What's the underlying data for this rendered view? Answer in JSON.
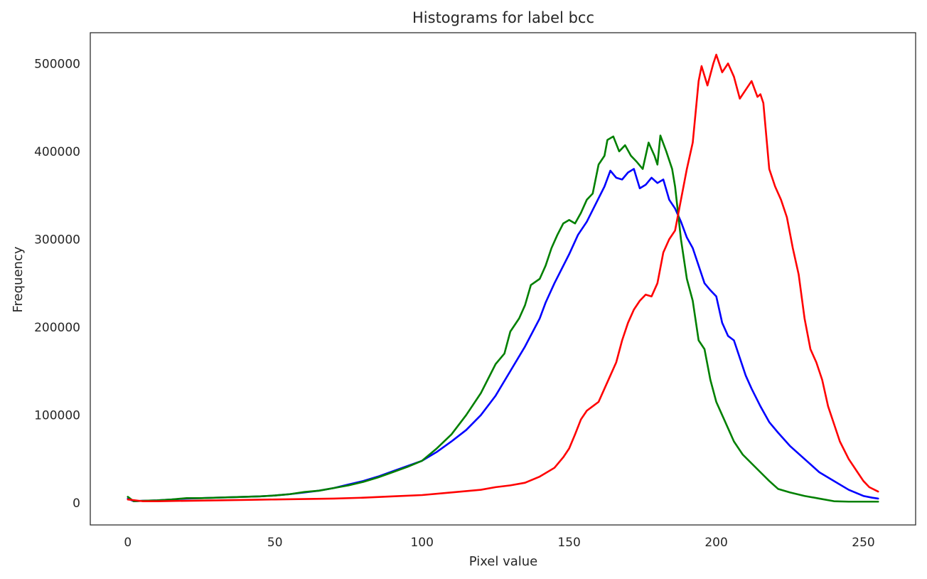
{
  "chart_data": {
    "type": "line",
    "title": "Histograms for label bcc",
    "xlabel": "Pixel value",
    "ylabel": "Frequency",
    "xlim": [
      -12.75,
      267.75
    ],
    "ylim": [
      -25000,
      535000
    ],
    "xticks": [
      0,
      50,
      100,
      150,
      200,
      250
    ],
    "yticks": [
      0,
      100000,
      200000,
      300000,
      400000,
      500000
    ],
    "grid": false,
    "legend": "none",
    "series": [
      {
        "color": "#0000ff",
        "points": [
          [
            0,
            5000
          ],
          [
            2,
            2000
          ],
          [
            5,
            2500
          ],
          [
            10,
            3000
          ],
          [
            15,
            4000
          ],
          [
            20,
            5000
          ],
          [
            25,
            5500
          ],
          [
            30,
            6000
          ],
          [
            35,
            6500
          ],
          [
            40,
            7000
          ],
          [
            45,
            7500
          ],
          [
            50,
            8500
          ],
          [
            55,
            10000
          ],
          [
            60,
            12000
          ],
          [
            65,
            14000
          ],
          [
            70,
            17000
          ],
          [
            75,
            21000
          ],
          [
            80,
            25000
          ],
          [
            85,
            30000
          ],
          [
            90,
            36000
          ],
          [
            95,
            42000
          ],
          [
            100,
            48000
          ],
          [
            105,
            58000
          ],
          [
            110,
            70000
          ],
          [
            115,
            83000
          ],
          [
            120,
            100000
          ],
          [
            125,
            122000
          ],
          [
            130,
            150000
          ],
          [
            135,
            178000
          ],
          [
            140,
            210000
          ],
          [
            142,
            228000
          ],
          [
            145,
            250000
          ],
          [
            150,
            283000
          ],
          [
            153,
            305000
          ],
          [
            156,
            320000
          ],
          [
            159,
            340000
          ],
          [
            162,
            360000
          ],
          [
            164,
            378000
          ],
          [
            166,
            370000
          ],
          [
            168,
            368000
          ],
          [
            170,
            376000
          ],
          [
            172,
            380000
          ],
          [
            174,
            358000
          ],
          [
            176,
            362000
          ],
          [
            178,
            370000
          ],
          [
            180,
            364000
          ],
          [
            182,
            368000
          ],
          [
            184,
            345000
          ],
          [
            186,
            335000
          ],
          [
            188,
            320000
          ],
          [
            190,
            302000
          ],
          [
            192,
            290000
          ],
          [
            194,
            270000
          ],
          [
            196,
            250000
          ],
          [
            198,
            242000
          ],
          [
            200,
            235000
          ],
          [
            202,
            205000
          ],
          [
            204,
            190000
          ],
          [
            206,
            185000
          ],
          [
            208,
            165000
          ],
          [
            210,
            145000
          ],
          [
            212,
            130000
          ],
          [
            215,
            110000
          ],
          [
            218,
            92000
          ],
          [
            221,
            80000
          ],
          [
            225,
            65000
          ],
          [
            230,
            50000
          ],
          [
            235,
            35000
          ],
          [
            240,
            25000
          ],
          [
            245,
            15000
          ],
          [
            250,
            8000
          ],
          [
            253,
            6000
          ],
          [
            255,
            5000
          ]
        ]
      },
      {
        "color": "#008000",
        "points": [
          [
            0,
            7000
          ],
          [
            2,
            2000
          ],
          [
            5,
            2500
          ],
          [
            10,
            3000
          ],
          [
            15,
            4000
          ],
          [
            20,
            5500
          ],
          [
            25,
            5500
          ],
          [
            30,
            6000
          ],
          [
            35,
            6500
          ],
          [
            40,
            7000
          ],
          [
            45,
            7500
          ],
          [
            50,
            8500
          ],
          [
            55,
            10000
          ],
          [
            60,
            12500
          ],
          [
            65,
            14000
          ],
          [
            70,
            17000
          ],
          [
            75,
            20000
          ],
          [
            80,
            24000
          ],
          [
            85,
            29000
          ],
          [
            90,
            35000
          ],
          [
            95,
            41000
          ],
          [
            100,
            48000
          ],
          [
            105,
            62000
          ],
          [
            110,
            78000
          ],
          [
            115,
            100000
          ],
          [
            120,
            125000
          ],
          [
            125,
            158000
          ],
          [
            128,
            170000
          ],
          [
            130,
            195000
          ],
          [
            133,
            210000
          ],
          [
            135,
            225000
          ],
          [
            137,
            248000
          ],
          [
            140,
            255000
          ],
          [
            142,
            270000
          ],
          [
            144,
            290000
          ],
          [
            146,
            305000
          ],
          [
            148,
            318000
          ],
          [
            150,
            322000
          ],
          [
            152,
            318000
          ],
          [
            154,
            330000
          ],
          [
            156,
            345000
          ],
          [
            158,
            352000
          ],
          [
            160,
            385000
          ],
          [
            162,
            395000
          ],
          [
            163,
            413000
          ],
          [
            165,
            417000
          ],
          [
            167,
            400000
          ],
          [
            169,
            407000
          ],
          [
            171,
            395000
          ],
          [
            173,
            388000
          ],
          [
            175,
            380000
          ],
          [
            177,
            410000
          ],
          [
            179,
            395000
          ],
          [
            180,
            385000
          ],
          [
            181,
            418000
          ],
          [
            183,
            400000
          ],
          [
            185,
            380000
          ],
          [
            186,
            360000
          ],
          [
            188,
            300000
          ],
          [
            190,
            255000
          ],
          [
            192,
            230000
          ],
          [
            194,
            185000
          ],
          [
            196,
            175000
          ],
          [
            198,
            140000
          ],
          [
            200,
            115000
          ],
          [
            202,
            100000
          ],
          [
            204,
            85000
          ],
          [
            206,
            70000
          ],
          [
            209,
            55000
          ],
          [
            212,
            45000
          ],
          [
            215,
            35000
          ],
          [
            218,
            25000
          ],
          [
            221,
            16000
          ],
          [
            225,
            12000
          ],
          [
            230,
            8000
          ],
          [
            235,
            5000
          ],
          [
            240,
            2000
          ],
          [
            245,
            1500
          ],
          [
            250,
            1500
          ],
          [
            255,
            1500
          ]
        ]
      },
      {
        "color": "#ff0000",
        "points": [
          [
            0,
            4000
          ],
          [
            5,
            2000
          ],
          [
            10,
            2000
          ],
          [
            20,
            2500
          ],
          [
            30,
            3000
          ],
          [
            40,
            3500
          ],
          [
            50,
            4000
          ],
          [
            60,
            4500
          ],
          [
            70,
            5000
          ],
          [
            80,
            6000
          ],
          [
            90,
            7500
          ],
          [
            100,
            9000
          ],
          [
            110,
            12000
          ],
          [
            120,
            15000
          ],
          [
            125,
            18000
          ],
          [
            130,
            20000
          ],
          [
            135,
            23000
          ],
          [
            140,
            30000
          ],
          [
            145,
            40000
          ],
          [
            148,
            52000
          ],
          [
            150,
            62000
          ],
          [
            152,
            78000
          ],
          [
            154,
            95000
          ],
          [
            156,
            105000
          ],
          [
            158,
            110000
          ],
          [
            160,
            115000
          ],
          [
            162,
            130000
          ],
          [
            164,
            145000
          ],
          [
            166,
            160000
          ],
          [
            168,
            185000
          ],
          [
            170,
            205000
          ],
          [
            172,
            220000
          ],
          [
            174,
            230000
          ],
          [
            176,
            237000
          ],
          [
            178,
            235000
          ],
          [
            180,
            250000
          ],
          [
            182,
            285000
          ],
          [
            184,
            300000
          ],
          [
            186,
            310000
          ],
          [
            188,
            345000
          ],
          [
            190,
            380000
          ],
          [
            192,
            410000
          ],
          [
            194,
            480000
          ],
          [
            195,
            497000
          ],
          [
            197,
            475000
          ],
          [
            199,
            500000
          ],
          [
            200,
            510000
          ],
          [
            202,
            490000
          ],
          [
            204,
            500000
          ],
          [
            206,
            485000
          ],
          [
            208,
            460000
          ],
          [
            210,
            470000
          ],
          [
            212,
            480000
          ],
          [
            214,
            462000
          ],
          [
            215,
            465000
          ],
          [
            216,
            455000
          ],
          [
            218,
            380000
          ],
          [
            220,
            360000
          ],
          [
            222,
            345000
          ],
          [
            224,
            325000
          ],
          [
            226,
            290000
          ],
          [
            228,
            260000
          ],
          [
            230,
            210000
          ],
          [
            232,
            175000
          ],
          [
            234,
            160000
          ],
          [
            236,
            140000
          ],
          [
            238,
            110000
          ],
          [
            240,
            90000
          ],
          [
            242,
            70000
          ],
          [
            245,
            50000
          ],
          [
            248,
            35000
          ],
          [
            250,
            25000
          ],
          [
            252,
            18000
          ],
          [
            255,
            13000
          ]
        ]
      }
    ]
  }
}
